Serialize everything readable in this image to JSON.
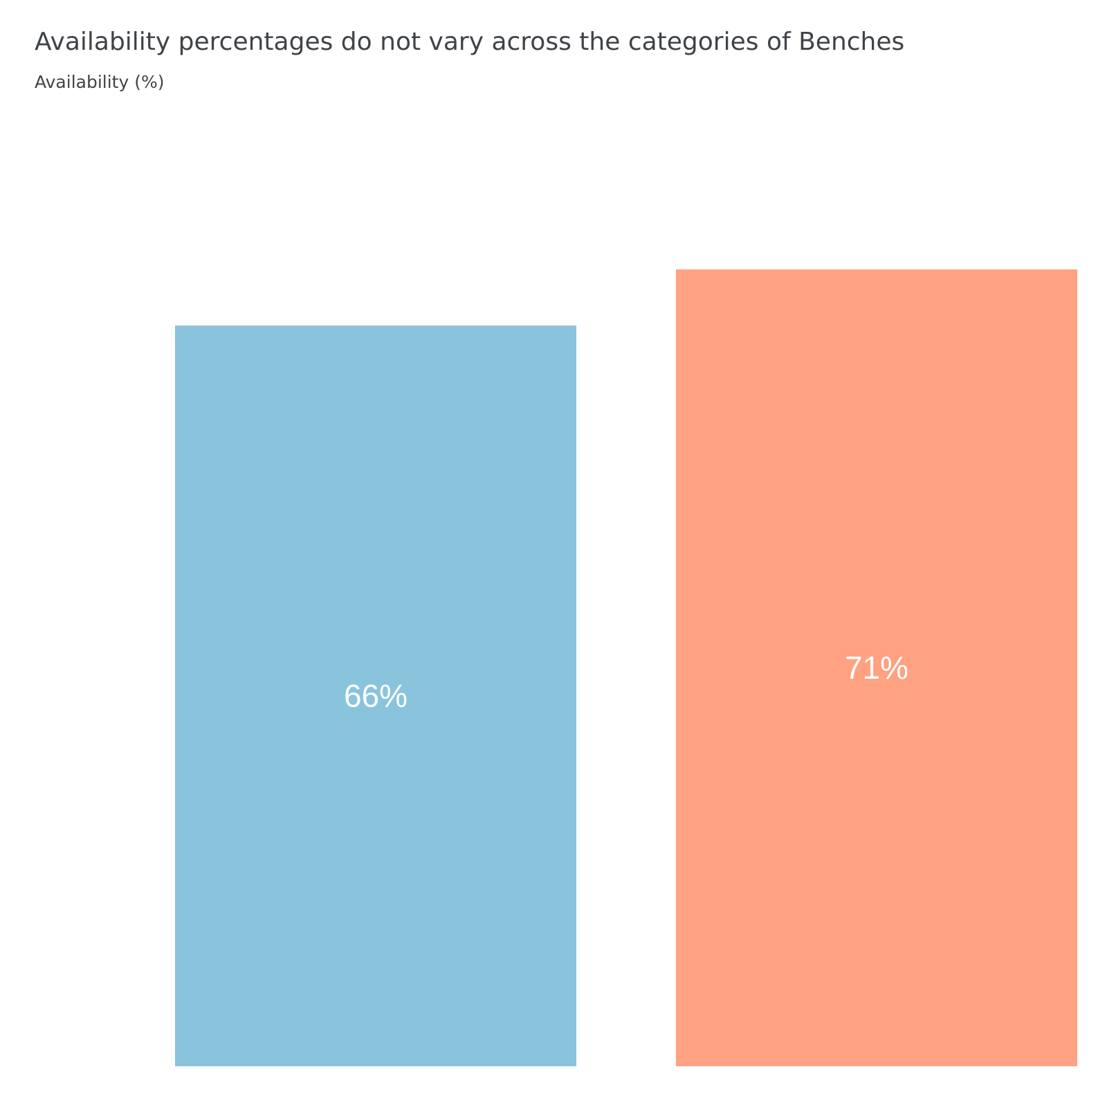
{
  "chart_data": {
    "type": "bar",
    "title": "Availability percentages do not vary across the categories of Benches",
    "subtitle": "Availability (%)",
    "xlabel": "",
    "ylabel": "",
    "ylim": [
      0,
      100
    ],
    "grid": false,
    "legend": "none",
    "values": [
      66,
      71
    ],
    "labels": [
      "66%",
      "71%"
    ],
    "colors": [
      "#89c4dc",
      "#fea281"
    ]
  }
}
